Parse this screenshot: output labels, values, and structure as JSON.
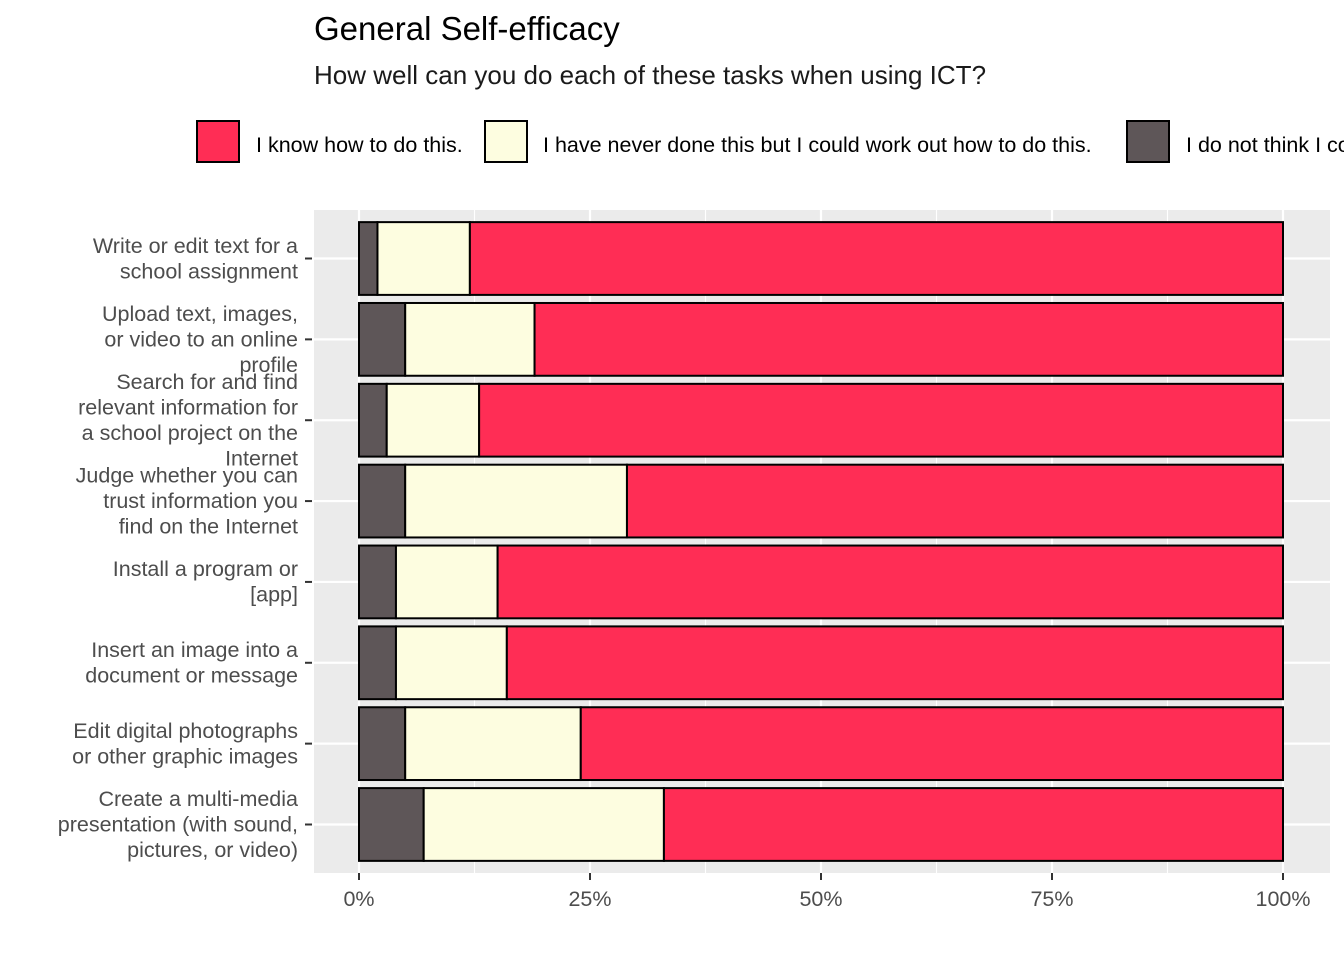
{
  "chart_data": {
    "type": "bar",
    "orientation": "horizontal",
    "stacked": true,
    "title": "General Self-efficacy",
    "subtitle": "How well can you do each of these tasks when using ICT?",
    "categories": [
      "Write or edit text for a school assignment",
      "Upload text, images, or video to an online profile",
      "Search for and find relevant information for a school project on the Internet",
      "Judge whether you can trust information you find on the Internet",
      "Install a program or [app]",
      "Insert an image into a document or message",
      "Edit digital photographs or other graphic images",
      "Create a multi-media presentation (with sound, pictures, or video)"
    ],
    "category_lines": [
      [
        "Write or edit text for a",
        "school assignment"
      ],
      [
        "Upload text, images,",
        "or video to an online",
        "profile"
      ],
      [
        "Search for and find",
        "relevant information for",
        "a school project on the",
        "Internet"
      ],
      [
        "Judge whether you can",
        "trust information you",
        "find on the Internet"
      ],
      [
        "Install a program or",
        "[app]"
      ],
      [
        "Insert an image into a",
        "document or message"
      ],
      [
        "Edit digital photographs",
        "or other graphic images"
      ],
      [
        "Create a multi-media",
        "presentation (with sound,",
        "pictures, or video)"
      ]
    ],
    "series": [
      {
        "name": "I do not think I could do this.",
        "color": "#5e5658",
        "values": [
          2,
          5,
          3,
          5,
          4,
          4,
          5,
          7
        ]
      },
      {
        "name": "I have never done this but I could work out how to do this.",
        "color": "#fdfde0",
        "values": [
          10,
          14,
          10,
          24,
          11,
          12,
          19,
          26
        ]
      },
      {
        "name": "I know how to do this.",
        "color": "#ff2d55",
        "values": [
          88,
          81,
          87,
          71,
          85,
          84,
          76,
          67
        ]
      }
    ],
    "legend": {
      "position": "top",
      "entries": [
        {
          "label": "I know how to do this.",
          "color": "#ff2d55"
        },
        {
          "label": "I have never done this but I could work out how to do this.",
          "color": "#fdfde0"
        },
        {
          "label": "I do not think I could do this.",
          "color": "#5e5658"
        }
      ]
    },
    "xlim": [
      0,
      100
    ],
    "xticks": [
      0,
      25,
      50,
      75,
      100
    ],
    "xtick_labels": [
      "0%",
      "25%",
      "50%",
      "75%",
      "100%"
    ],
    "grid": true,
    "panel_background": "#ebebeb",
    "gridline_color": "#ffffff",
    "bar_outline": "#000000"
  }
}
